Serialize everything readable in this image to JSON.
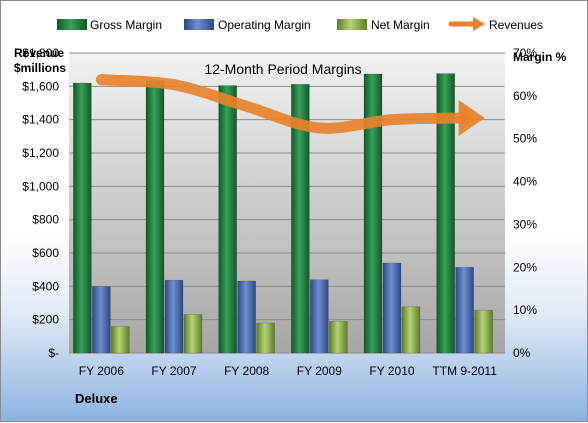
{
  "chart_data": {
    "type": "bar",
    "title": "12-Month Period Margins",
    "company": "Deluxe",
    "y_left_label": [
      "Revenue",
      "$millions"
    ],
    "y_right_label": "Margin %",
    "categories": [
      "FY 2006",
      "FY 2007",
      "FY 2008",
      "FY 2009",
      "FY 2010",
      "TTM 9-2011"
    ],
    "ylim_left": [
      0,
      1800
    ],
    "ylim_right": [
      0,
      70
    ],
    "y_left_ticks": [
      "$-",
      "$200",
      "$400",
      "$600",
      "$800",
      "$1,000",
      "$1,200",
      "$1,400",
      "$1,600",
      "$1,800"
    ],
    "y_right_ticks": [
      "0%",
      "10%",
      "20%",
      "30%",
      "40%",
      "50%",
      "60%",
      "70%"
    ],
    "series": [
      {
        "name": "Gross Margin",
        "axis": "right",
        "kind": "bar",
        "color": "#1f7a3a",
        "values": [
          63.0,
          63.6,
          62.4,
          62.7,
          65.1,
          65.2
        ]
      },
      {
        "name": "Operating Margin",
        "axis": "right",
        "kind": "bar",
        "color": "#3e63a8",
        "values": [
          15.5,
          17.0,
          16.8,
          17.1,
          21.0,
          20.0
        ]
      },
      {
        "name": "Net Margin",
        "axis": "right",
        "kind": "bar",
        "color": "#7fa83a",
        "values": [
          6.2,
          9.0,
          7.0,
          7.4,
          10.8,
          10.0
        ]
      },
      {
        "name": "Revenues",
        "axis": "left",
        "kind": "line",
        "color": "#e8822c",
        "values": [
          1640,
          1610,
          1480,
          1350,
          1400,
          1410
        ]
      }
    ],
    "grid": true,
    "legend": "top"
  }
}
